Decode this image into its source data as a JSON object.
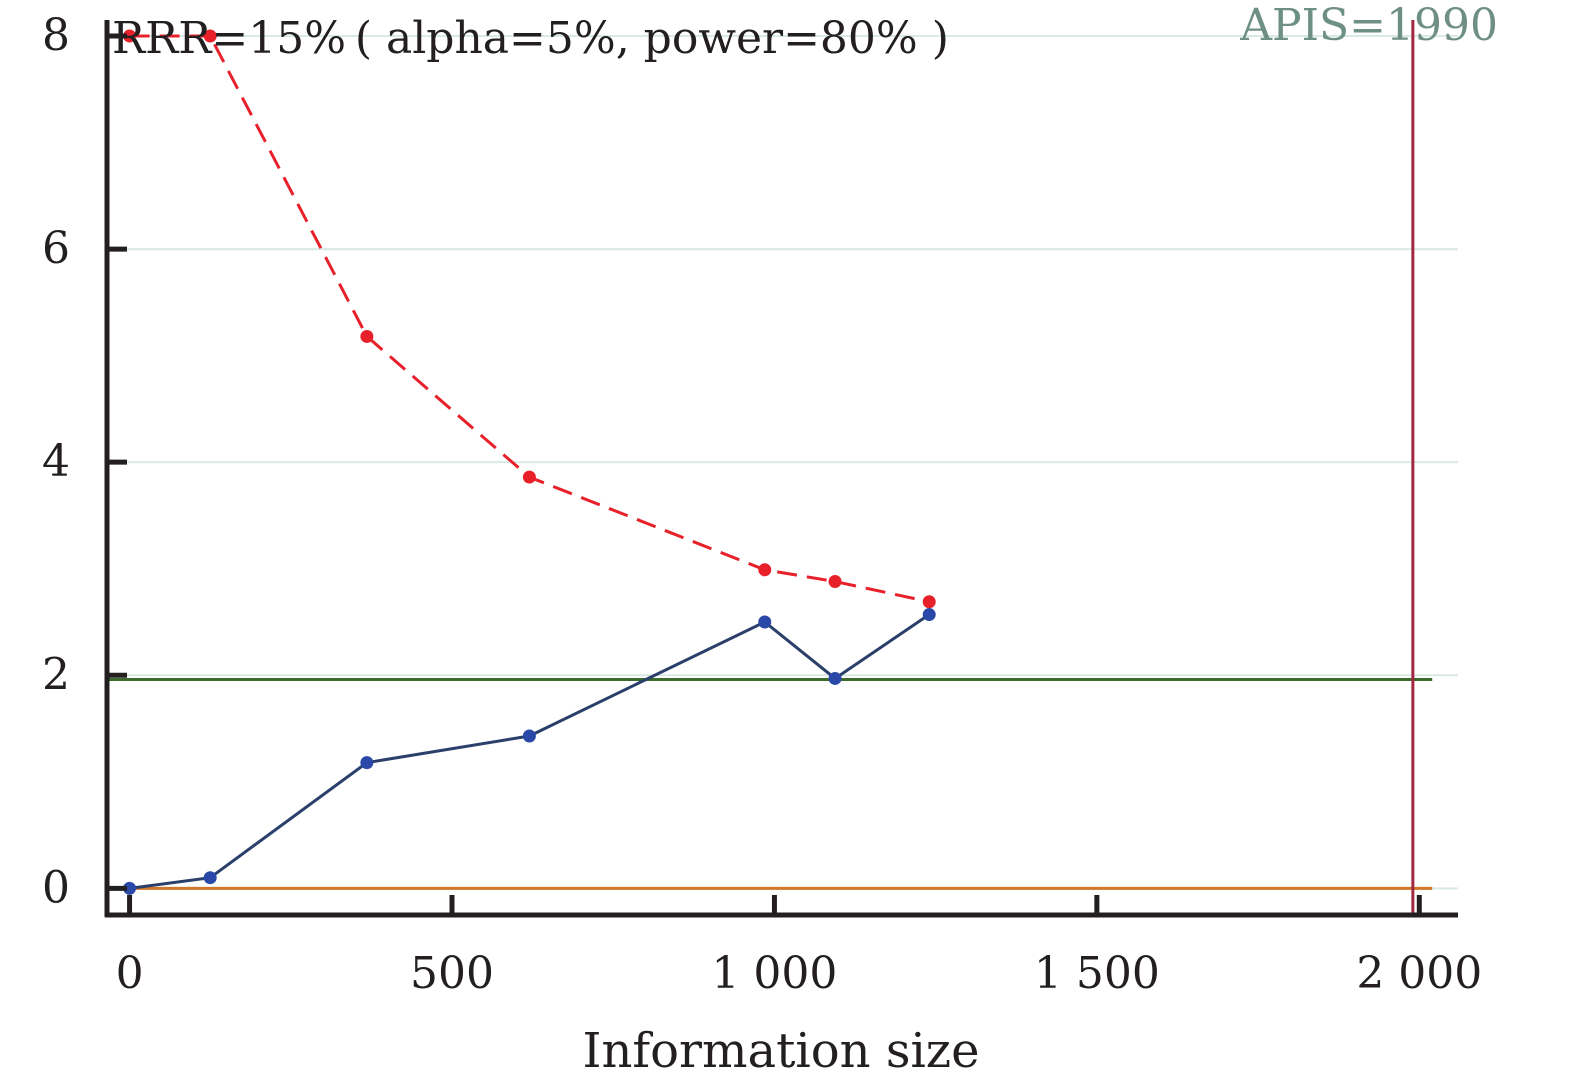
{
  "chart_data": {
    "type": "line",
    "title": "RRR=15% ( alpha=5%, power=80% )",
    "annotation": "APIS=1990",
    "xlabel": "Information size",
    "ylabel": "",
    "xlim": [
      -35,
      2060
    ],
    "ylim": [
      -0.25,
      8.15
    ],
    "x_ticks": [
      {
        "value": 0,
        "label": "0"
      },
      {
        "value": 500,
        "label": "500"
      },
      {
        "value": 1000,
        "label": "1 000"
      },
      {
        "value": 1500,
        "label": "1 500"
      },
      {
        "value": 2000,
        "label": "2 000"
      }
    ],
    "y_ticks": [
      {
        "value": 0,
        "label": "0"
      },
      {
        "value": 2,
        "label": "2"
      },
      {
        "value": 4,
        "label": "4"
      },
      {
        "value": 6,
        "label": "6"
      },
      {
        "value": 8,
        "label": "8"
      }
    ],
    "grid": true,
    "series": [
      {
        "style": "dashed",
        "color": "#e8202a",
        "x": [
          0,
          125,
          368,
          620,
          985,
          1094,
          1240
        ],
        "y": [
          8.0,
          8.0,
          5.18,
          3.86,
          2.99,
          2.88,
          2.69
        ]
      },
      {
        "style": "solid",
        "color": "#2b3f6b",
        "marker_color": "#2a48a8",
        "x": [
          0,
          125,
          368,
          620,
          985,
          1094,
          1240
        ],
        "y": [
          0.0,
          0.1,
          1.18,
          1.43,
          2.5,
          1.97,
          2.57
        ]
      }
    ],
    "reference_lines": [
      {
        "orientation": "horizontal",
        "value": 1.96,
        "color": "#3d6b2c"
      },
      {
        "orientation": "horizontal",
        "value": 0,
        "color": "#d0762a"
      },
      {
        "orientation": "vertical",
        "value": 1990,
        "color": "#a0283f"
      }
    ]
  }
}
